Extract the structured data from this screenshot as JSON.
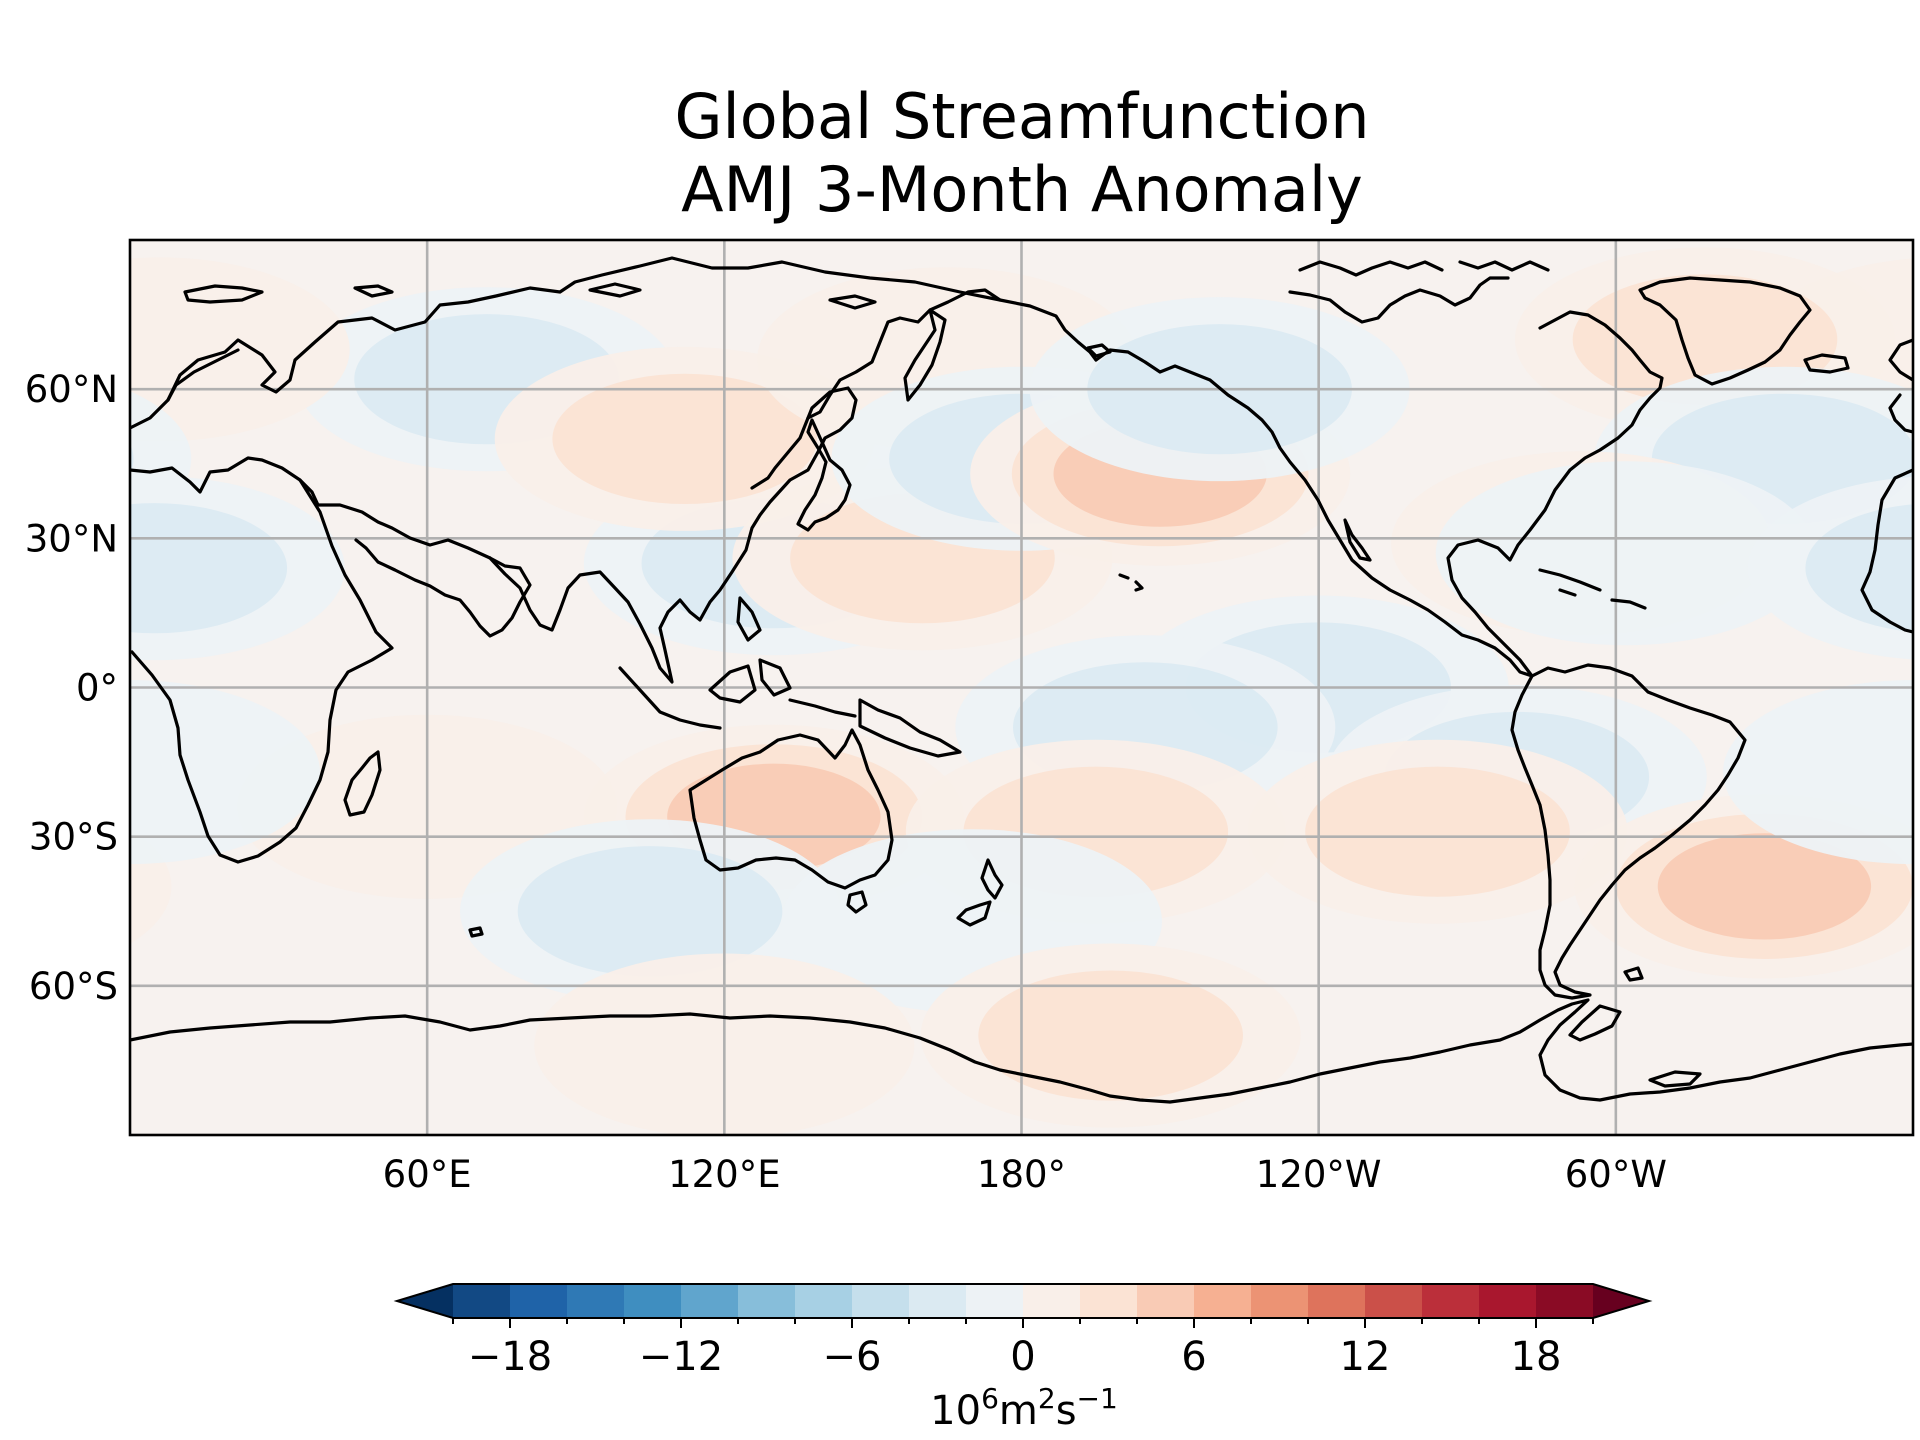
{
  "title": {
    "line1": "Global Streamfunction",
    "line2": "AMJ 3-Month Anomaly"
  },
  "map": {
    "projection": "PlateCarree",
    "central_longitude": 180,
    "lon_range": [
      0,
      360
    ],
    "lat_range": [
      -90,
      90
    ],
    "gridlines": true,
    "coastlines": true,
    "lon_ticks": [
      {
        "lon": 60,
        "label": "60°E"
      },
      {
        "lon": 120,
        "label": "120°E"
      },
      {
        "lon": 180,
        "label": "180°"
      },
      {
        "lon": 240,
        "label": "120°W"
      },
      {
        "lon": 300,
        "label": "60°W"
      }
    ],
    "lat_ticks": [
      {
        "lat": 60,
        "label": "60°N"
      },
      {
        "lat": 30,
        "label": "30°N"
      },
      {
        "lat": 0,
        "label": "0°"
      },
      {
        "lat": -30,
        "label": "30°S"
      },
      {
        "lat": -60,
        "label": "60°S"
      }
    ],
    "anomaly_centers": [
      {
        "lon": 72,
        "lat": 62,
        "value": -4.5
      },
      {
        "lon": 130,
        "lat": 25,
        "value": -5
      },
      {
        "lon": 112,
        "lat": 50,
        "value": 5
      },
      {
        "lon": 165,
        "lat": 66,
        "value": 3.5
      },
      {
        "lon": 6,
        "lat": 68,
        "value": 3.5
      },
      {
        "lon": 160,
        "lat": 26,
        "value": 5
      },
      {
        "lon": 180,
        "lat": 46,
        "value": -5
      },
      {
        "lon": 208,
        "lat": 43,
        "value": 6
      },
      {
        "lon": 220,
        "lat": 60,
        "value": -4
      },
      {
        "lon": 318,
        "lat": 70,
        "value": 4
      },
      {
        "lon": 334,
        "lat": 46,
        "value": -4.5
      },
      {
        "lon": 293,
        "lat": 29,
        "value": 3.5
      },
      {
        "lon": 302,
        "lat": 27,
        "value": -3.5
      },
      {
        "lon": 5,
        "lat": 24,
        "value": -4
      },
      {
        "lon": 240,
        "lat": 0,
        "value": -5
      },
      {
        "lon": 205,
        "lat": -8,
        "value": -4
      },
      {
        "lon": 280,
        "lat": -18,
        "value": -5
      },
      {
        "lon": 130,
        "lat": -26,
        "value": 6
      },
      {
        "lon": 60,
        "lat": -24,
        "value": 3.5
      },
      {
        "lon": 195,
        "lat": -29,
        "value": 5
      },
      {
        "lon": 264,
        "lat": -29,
        "value": 5
      },
      {
        "lon": 330,
        "lat": -40,
        "value": 6
      },
      {
        "lon": 105,
        "lat": -45,
        "value": -5
      },
      {
        "lon": 170,
        "lat": -47,
        "value": -3.5
      },
      {
        "lon": 120,
        "lat": -72,
        "value": 3.5
      },
      {
        "lon": 198,
        "lat": -70,
        "value": 4
      },
      {
        "lon": 0,
        "lat": -17,
        "value": -3.5
      }
    ]
  },
  "colorbar": {
    "levels": [
      -20,
      -18,
      -16,
      -14,
      -12,
      -10,
      -8,
      -6,
      -4,
      -2,
      0,
      2,
      4,
      6,
      8,
      10,
      12,
      14,
      16,
      18,
      20
    ],
    "colors": [
      "#124984",
      "#1f63a8",
      "#2f79b5",
      "#3f8ec0",
      "#60a5cd",
      "#87beda",
      "#a7d0e4",
      "#c5dfec",
      "#dbeaf2",
      "#edf2f5",
      "#f9efe9",
      "#fbe3d4",
      "#f9cbb5",
      "#f6b092",
      "#ec9374",
      "#de735c",
      "#cb5049",
      "#bb2f3a",
      "#a9172e",
      "#8a0b25"
    ],
    "extend_min_color": "#053061",
    "extend_max_color": "#67001f",
    "ticks": [
      "−18",
      "−12",
      "−6",
      "0",
      "6",
      "12",
      "18"
    ],
    "tick_values": [
      -18,
      -12,
      -6,
      0,
      6,
      12,
      18
    ],
    "label": "10",
    "label_exp1": "6",
    "label_mid": "m",
    "label_exp2": "2",
    "label_end": "s",
    "label_exp3": "−1"
  }
}
